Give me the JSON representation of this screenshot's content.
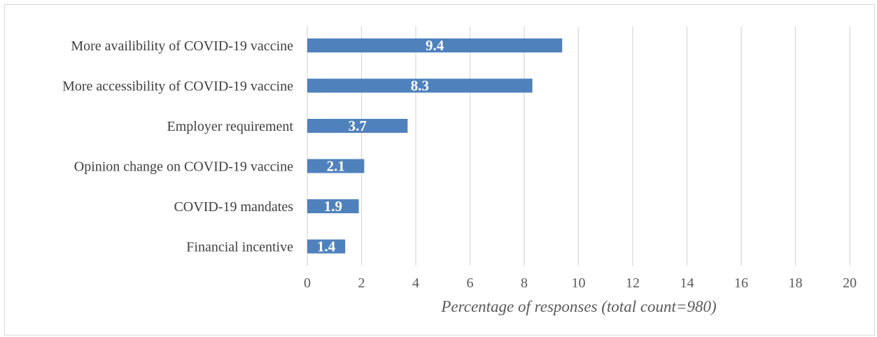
{
  "chart_data": {
    "type": "bar",
    "orientation": "horizontal",
    "categories": [
      "More availibility of COVID-19 vaccine",
      "More accessibility of COVID-19 vaccine",
      "Employer requirement",
      "Opinion change on COVID-19 vaccine",
      "COVID-19 mandates",
      "Financial incentive"
    ],
    "values": [
      9.4,
      8.3,
      3.7,
      2.1,
      1.9,
      1.4
    ],
    "data_labels": [
      "9.4",
      "8.3",
      "3.7",
      "2.1",
      "1.9",
      "1.4"
    ],
    "title": "",
    "xlabel": "Percentage of responses (total count=980)",
    "ylabel": "",
    "xlim": [
      0,
      20
    ],
    "x_ticks": [
      "0",
      "2",
      "4",
      "6",
      "8",
      "10",
      "12",
      "14",
      "16",
      "18",
      "20"
    ],
    "grid": "vertical",
    "legend": "none",
    "bar_color": "#4f81bd",
    "label_color": "#ffffff"
  }
}
